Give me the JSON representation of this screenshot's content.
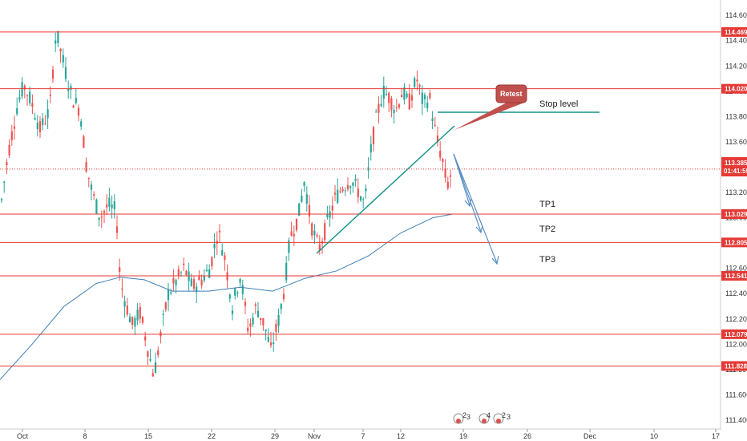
{
  "chart_data": {
    "type": "candlestick",
    "price_axis": {
      "ticks": [
        "114.600",
        "114.400",
        "114.200",
        "114.000",
        "113.800",
        "113.600",
        "113.400",
        "113.200",
        "113.000",
        "112.800",
        "112.600",
        "112.400",
        "112.200",
        "112.000",
        "111.800",
        "111.600",
        "111.400"
      ],
      "range": [
        111.33,
        114.69
      ]
    },
    "time_axis": {
      "labels": [
        "Oct",
        "8",
        "15",
        "22",
        "29",
        "Nov",
        "7",
        "12",
        "19",
        "26",
        "Dec",
        "10",
        "17"
      ]
    },
    "levels": [
      {
        "value": 114.469,
        "label": "114.469"
      },
      {
        "value": 114.02,
        "label": "114.020"
      },
      {
        "value": 113.029,
        "label": "113.029"
      },
      {
        "value": 112.805,
        "label": "112.805"
      },
      {
        "value": 112.541,
        "label": "112.541"
      },
      {
        "value": 112.079,
        "label": "112.079"
      },
      {
        "value": 111.828,
        "label": "111.828"
      }
    ],
    "current_price": {
      "value": 113.385,
      "label": "113.385",
      "countdown": "01:41:59"
    },
    "annotations": {
      "retest": "Retest",
      "stop_level": "Stop level",
      "tp1": "TP1",
      "tp2": "TP2",
      "tp3": "TP3"
    },
    "event_markers": [
      "2",
      "3",
      "4",
      "2",
      "3"
    ],
    "colors": {
      "level": "#e53935",
      "up": "#26a69a",
      "down": "#ef5350",
      "ma": "#3f7fb5",
      "trendline": "#17948a",
      "callout": "#c0504d",
      "arrow": "#5b8fc5"
    }
  }
}
